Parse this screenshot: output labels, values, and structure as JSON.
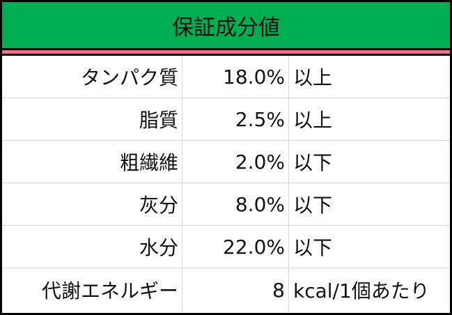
{
  "title": "保証成分値",
  "colors": {
    "header_bg": "#00ad50",
    "separator": "#e8728a",
    "grid": "#d4d4d4"
  },
  "rows": [
    {
      "name": "タンパク質",
      "value": "18.0%",
      "note": "以上"
    },
    {
      "name": "脂質",
      "value": "2.5%",
      "note": "以上"
    },
    {
      "name": "粗繊維",
      "value": "2.0%",
      "note": "以下"
    },
    {
      "name": "灰分",
      "value": "8.0%",
      "note": "以下"
    },
    {
      "name": "水分",
      "value": "22.0%",
      "note": "以下"
    },
    {
      "name": "代謝エネルギー",
      "value": "8",
      "note": "kcal/1個あたり"
    }
  ]
}
